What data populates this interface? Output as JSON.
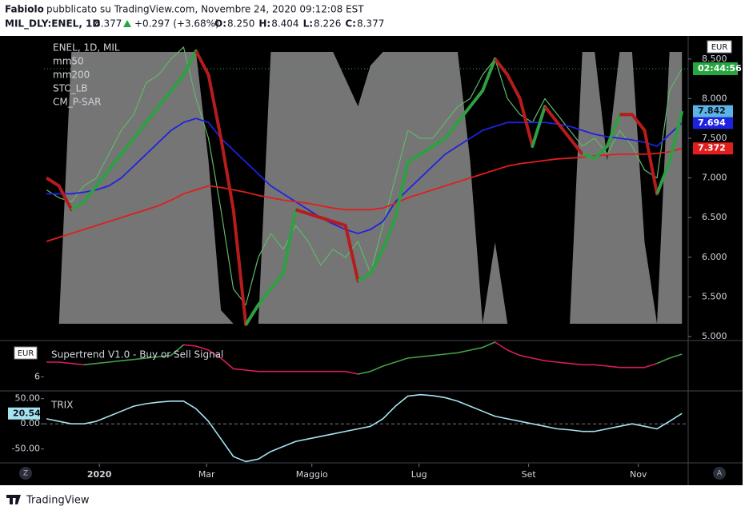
{
  "header": {
    "author": "Fabiolo",
    "published": "pubblicato su TradingView.com, Novembre 24, 2020 09:12:08 EST",
    "ticker": "MIL_DLY:ENEL, 1D",
    "last": "8.377",
    "change": "+0.297 (+3.68%)",
    "ohlc": [
      {
        "key": "O:",
        "value": "8.250"
      },
      {
        "key": "H:",
        "value": "8.404"
      },
      {
        "key": "L:",
        "value": "8.226"
      },
      {
        "key": "C:",
        "value": "8.377"
      }
    ]
  },
  "currency": "EUR",
  "buttons": [
    "Z",
    "A"
  ],
  "footer": "TradingView",
  "chart_data": [
    {
      "type": "line",
      "title": "ENEL, 1D, MIL",
      "x": [
        0,
        1,
        2,
        3,
        4,
        5,
        6,
        7,
        8,
        9,
        10,
        11,
        12,
        13,
        14,
        15,
        16,
        17,
        18,
        19,
        20,
        21,
        22,
        23,
        24,
        25,
        26,
        27,
        28,
        29,
        30,
        31,
        32,
        33,
        34,
        35,
        36,
        37,
        38,
        39,
        40,
        41,
        42,
        43,
        44,
        45,
        46,
        47,
        48,
        49,
        50,
        51
      ],
      "xlim": [
        -0.2,
        51.5
      ],
      "xticks": [
        {
          "value": 4.24,
          "label": "2020"
        },
        {
          "value": 12.85,
          "label": "Mar"
        },
        {
          "value": 21.3,
          "label": "Maggio"
        },
        {
          "value": 29.9,
          "label": "Lug"
        },
        {
          "value": 38.7,
          "label": "Set"
        },
        {
          "value": 47.5,
          "label": "Nov"
        }
      ],
      "ylim": [
        4.96,
        8.76
      ],
      "yticks": [
        {
          "value": 5,
          "label": "5.000"
        },
        {
          "value": 5.5,
          "label": "5.500"
        },
        {
          "value": 6,
          "label": "6.000"
        },
        {
          "value": 6.5,
          "label": "6.500"
        },
        {
          "value": 7,
          "label": "7.000"
        },
        {
          "value": 7.5,
          "label": "7.500"
        },
        {
          "value": 8,
          "label": "8.000"
        },
        {
          "value": 8.5,
          "label": "8.500"
        }
      ],
      "y2lim": [
        -5.9,
        105
      ],
      "countdown": "02:44:56",
      "close": {
        "color": "#5fb86a",
        "label_color": "#26a641",
        "values": [
          6.85,
          6.75,
          6.7,
          6.9,
          7.0,
          7.3,
          7.6,
          7.8,
          8.2,
          8.3,
          8.5,
          8.65,
          8.0,
          7.5,
          6.6,
          5.6,
          5.4,
          6.0,
          6.3,
          6.1,
          6.4,
          6.2,
          5.9,
          6.1,
          6.0,
          6.2,
          5.8,
          6.4,
          7.0,
          7.6,
          7.5,
          7.5,
          7.7,
          7.9,
          8.0,
          8.3,
          8.5,
          8.0,
          7.8,
          7.7,
          8.0,
          7.8,
          7.6,
          7.4,
          7.5,
          7.3,
          7.6,
          7.4,
          7.1,
          7.0,
          8.1,
          8.377
        ]
      },
      "series": [
        {
          "name": "mm50",
          "color": "#1e22e0",
          "label_color": "#1e22e0",
          "values": [
            6.8,
            6.8,
            6.8,
            6.82,
            6.85,
            6.9,
            7.0,
            7.15,
            7.3,
            7.45,
            7.6,
            7.7,
            7.75,
            7.7,
            7.5,
            7.35,
            7.2,
            7.05,
            6.9,
            6.8,
            6.7,
            6.6,
            6.5,
            6.42,
            6.35,
            6.3,
            6.35,
            6.45,
            6.7,
            6.85,
            7.0,
            7.15,
            7.3,
            7.4,
            7.5,
            7.6,
            7.65,
            7.7,
            7.7,
            7.7,
            7.7,
            7.68,
            7.65,
            7.6,
            7.55,
            7.52,
            7.5,
            7.48,
            7.45,
            7.4,
            7.55,
            7.694
          ]
        },
        {
          "name": "mm200",
          "color": "#e01e1e",
          "label_color": "#e01e1e",
          "values": [
            6.2,
            6.25,
            6.3,
            6.35,
            6.4,
            6.45,
            6.5,
            6.55,
            6.6,
            6.65,
            6.72,
            6.8,
            6.85,
            6.9,
            6.88,
            6.85,
            6.82,
            6.78,
            6.75,
            6.72,
            6.7,
            6.68,
            6.65,
            6.62,
            6.6,
            6.6,
            6.6,
            6.62,
            6.68,
            6.75,
            6.8,
            6.85,
            6.9,
            6.95,
            7.0,
            7.05,
            7.1,
            7.15,
            7.18,
            7.2,
            7.22,
            7.24,
            7.25,
            7.26,
            7.28,
            7.29,
            7.3,
            7.3,
            7.3,
            7.31,
            7.33,
            7.372
          ]
        },
        {
          "name": "STC_LB",
          "kind": "area",
          "axis": "y2",
          "color": "#8a8a8a",
          "values": [
            0,
            0,
            100,
            100,
            100,
            100,
            100,
            100,
            100,
            100,
            100,
            100,
            100,
            60,
            5,
            0,
            0,
            0,
            100,
            100,
            100,
            100,
            100,
            100,
            90,
            80,
            95,
            100,
            100,
            100,
            100,
            100,
            100,
            100,
            60,
            0,
            30,
            0,
            0,
            0,
            0,
            0,
            0,
            100,
            100,
            60,
            100,
            100,
            30,
            0,
            100,
            100
          ]
        },
        {
          "name": "CM_P-SAR",
          "label_color": "#5ab4e5",
          "values": [
            7.0,
            6.9,
            6.6,
            6.7,
            6.9,
            7.1,
            7.3,
            7.5,
            7.7,
            7.9,
            8.1,
            8.3,
            8.6,
            8.3,
            7.5,
            6.6,
            5.15,
            5.4,
            5.6,
            5.8,
            6.6,
            6.55,
            6.5,
            6.45,
            6.4,
            5.7,
            5.8,
            6.1,
            6.5,
            7.2,
            7.3,
            7.4,
            7.5,
            7.7,
            7.9,
            8.1,
            8.5,
            8.3,
            8.0,
            7.4,
            7.9,
            7.7,
            7.5,
            7.3,
            7.25,
            7.4,
            7.8,
            7.8,
            7.6,
            6.8,
            7.2,
            7.842
          ],
          "colors": [
            "#b71c1c",
            "#b71c1c",
            "#2ea043",
            "#2ea043",
            "#2ea043",
            "#2ea043",
            "#2ea043",
            "#2ea043",
            "#2ea043",
            "#2ea043",
            "#2ea043",
            "#2ea043",
            "#b71c1c",
            "#b71c1c",
            "#b71c1c",
            "#b71c1c",
            "#2ea043",
            "#2ea043",
            "#2ea043",
            "#2ea043",
            "#b71c1c",
            "#b71c1c",
            "#b71c1c",
            "#b71c1c",
            "#b71c1c",
            "#2ea043",
            "#2ea043",
            "#2ea043",
            "#2ea043",
            "#2ea043",
            "#2ea043",
            "#2ea043",
            "#2ea043",
            "#2ea043",
            "#2ea043",
            "#2ea043",
            "#b71c1c",
            "#b71c1c",
            "#b71c1c",
            "#2ea043",
            "#b71c1c",
            "#b71c1c",
            "#b71c1c",
            "#2ea043",
            "#2ea043",
            "#2ea043",
            "#b71c1c",
            "#b71c1c",
            "#b71c1c",
            "#2ea043",
            "#2ea043",
            "#2ea043"
          ]
        }
      ]
    },
    {
      "type": "line",
      "title": "Supertrend V1.0 - Buy or Sell Signal",
      "ylim": [
        5.5,
        7.3
      ],
      "yticks": [
        6
      ],
      "series": [
        {
          "name": "Supertrend",
          "values": [
            6.55,
            6.55,
            6.5,
            6.45,
            6.5,
            6.55,
            6.6,
            6.65,
            6.7,
            6.75,
            6.8,
            7.2,
            7.15,
            7.0,
            6.7,
            6.3,
            6.25,
            6.2,
            6.2,
            6.2,
            6.2,
            6.2,
            6.2,
            6.2,
            6.2,
            6.1,
            6.2,
            6.4,
            6.55,
            6.7,
            6.75,
            6.8,
            6.85,
            6.9,
            7.0,
            7.1,
            7.3,
            7.0,
            6.8,
            6.7,
            6.6,
            6.55,
            6.5,
            6.45,
            6.45,
            6.4,
            6.35,
            6.35,
            6.35,
            6.5,
            6.7,
            6.85
          ],
          "colors": [
            "#d81b60",
            "#d81b60",
            "#d81b60",
            "#43a047",
            "#43a047",
            "#43a047",
            "#43a047",
            "#43a047",
            "#43a047",
            "#43a047",
            "#43a047",
            "#d81b60",
            "#d81b60",
            "#d81b60",
            "#d81b60",
            "#d81b60",
            "#d81b60",
            "#d81b60",
            "#d81b60",
            "#d81b60",
            "#d81b60",
            "#d81b60",
            "#d81b60",
            "#d81b60",
            "#d81b60",
            "#43a047",
            "#43a047",
            "#43a047",
            "#43a047",
            "#43a047",
            "#43a047",
            "#43a047",
            "#43a047",
            "#43a047",
            "#43a047",
            "#43a047",
            "#d81b60",
            "#d81b60",
            "#d81b60",
            "#d81b60",
            "#d81b60",
            "#d81b60",
            "#d81b60",
            "#d81b60",
            "#d81b60",
            "#d81b60",
            "#d81b60",
            "#d81b60",
            "#d81b60",
            "#43a047",
            "#43a047",
            "#43a047"
          ]
        }
      ]
    },
    {
      "type": "line",
      "title": "TRIX",
      "ylim": [
        -75.9,
        63.8
      ],
      "yticks": [
        {
          "value": 50,
          "label": "50.00"
        },
        {
          "value": 0,
          "label": "0.00"
        },
        {
          "value": -50,
          "label": "-50.00"
        }
      ],
      "zero_line": true,
      "series": [
        {
          "name": "TRIX",
          "color": "#a5e3f0",
          "label_color": "#a5e3f0",
          "values": [
            10,
            5,
            0,
            0,
            5,
            15,
            25,
            35,
            40,
            43,
            45,
            45,
            30,
            5,
            -30,
            -65,
            -75,
            -70,
            -55,
            -45,
            -35,
            -30,
            -25,
            -20,
            -15,
            -10,
            -5,
            10,
            35,
            55,
            58,
            56,
            52,
            45,
            35,
            25,
            15,
            10,
            5,
            0,
            -5,
            -10,
            -12,
            -15,
            -15,
            -10,
            -5,
            0,
            -5,
            -10,
            5,
            20.54
          ]
        }
      ]
    }
  ]
}
